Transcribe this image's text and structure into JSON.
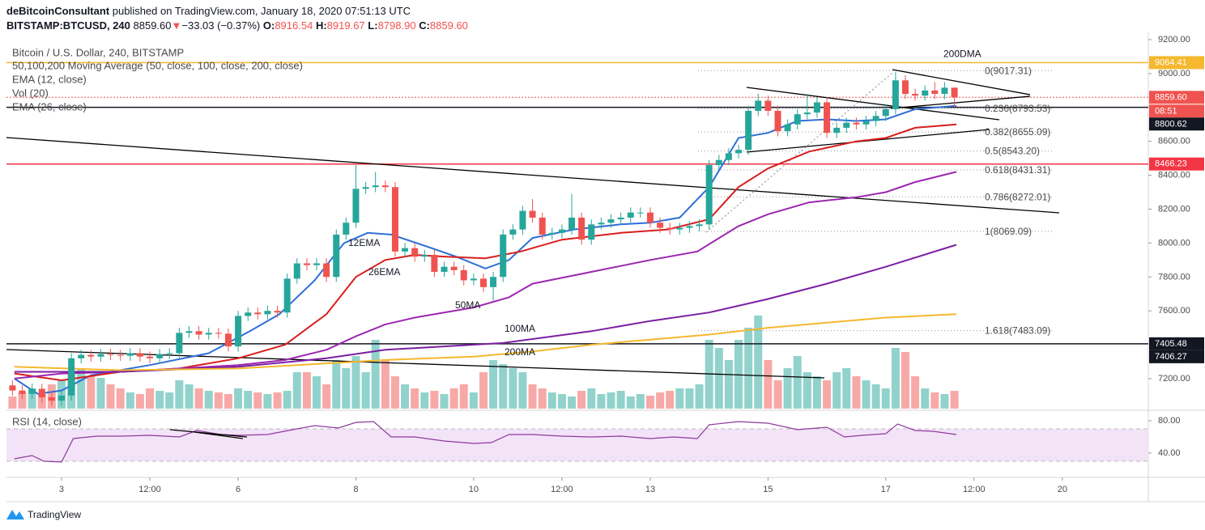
{
  "header": {
    "publisher": "deBitcoinConsultant",
    "published": "published on TradingView.com, January 18, 2020 07:51:13 UTC",
    "symbol": "BITSTAMP:BTCUSD, 240",
    "last": "8859.60",
    "arrow": "▼",
    "change": "−33.03 (−0.37%)",
    "ohlc": [
      {
        "key": "O:",
        "value": "8916.54"
      },
      {
        "key": "H:",
        "value": "8919.67"
      },
      {
        "key": "L:",
        "value": "8798.90"
      },
      {
        "key": "C:",
        "value": "8859.60"
      }
    ]
  },
  "legend": [
    "Bitcoin / U.S. Dollar, 240, BITSTAMP",
    "50,100,200 Moving Average (50, close, 100, close, 200, close)",
    "EMA (12, close)",
    "Vol (20)",
    "EMA (26, close)"
  ],
  "chart_data": {
    "type": "candlestick",
    "up_color": "#26a69a",
    "down_color": "#ef5350",
    "xlim": [
      2.065,
      21.46
    ],
    "ylim": [
      7023,
      9243
    ],
    "xticks": [
      {
        "value": 3,
        "label": "3"
      },
      {
        "value": 4.5,
        "label": "12:00"
      },
      {
        "value": 6,
        "label": "6"
      },
      {
        "value": 8,
        "label": "8"
      },
      {
        "value": 10,
        "label": "10"
      },
      {
        "value": 11.5,
        "label": "12:00"
      },
      {
        "value": 13,
        "label": "13"
      },
      {
        "value": 15,
        "label": "15"
      },
      {
        "value": 17,
        "label": "17"
      },
      {
        "value": 18.5,
        "label": "12:00"
      },
      {
        "value": 20,
        "label": "20"
      }
    ],
    "yticks": [
      {
        "value": 9200,
        "label": "9200.00"
      },
      {
        "value": 9000,
        "label": "9000.00"
      },
      {
        "value": 8600,
        "label": "8600.00"
      },
      {
        "value": 8400,
        "label": "8400.00"
      },
      {
        "value": 8200,
        "label": "8200.00"
      },
      {
        "value": 8000,
        "label": "8000.00"
      },
      {
        "value": 7800,
        "label": "7800.00"
      },
      {
        "value": 7600,
        "label": "7600.00"
      },
      {
        "value": 7200,
        "label": "7200.00"
      }
    ],
    "x": [
      2.167,
      2.333,
      2.5,
      2.667,
      2.833,
      3,
      3.167,
      3.333,
      3.5,
      3.667,
      3.833,
      4,
      4.167,
      4.333,
      4.5,
      4.667,
      4.833,
      5,
      5.167,
      5.333,
      5.5,
      5.667,
      5.833,
      6,
      6.167,
      6.333,
      6.5,
      6.667,
      6.833,
      7,
      7.167,
      7.333,
      7.5,
      7.667,
      7.833,
      8,
      8.167,
      8.333,
      8.5,
      8.667,
      8.833,
      9,
      9.167,
      9.333,
      9.5,
      9.667,
      9.833,
      10,
      10.167,
      10.333,
      10.5,
      10.667,
      10.833,
      11,
      11.167,
      11.333,
      11.5,
      11.667,
      11.833,
      12,
      12.167,
      12.333,
      12.5,
      12.667,
      12.833,
      13,
      13.167,
      13.333,
      13.5,
      13.667,
      13.833,
      14,
      14.167,
      14.333,
      14.5,
      14.667,
      14.833,
      15,
      15.167,
      15.333,
      15.5,
      15.667,
      15.833,
      16,
      16.167,
      16.333,
      16.5,
      16.667,
      16.833,
      17,
      17.167,
      17.333,
      17.5,
      17.667,
      17.833,
      18,
      18.167
    ],
    "open": [
      7160,
      7130,
      7110,
      7140,
      7090,
      7070,
      7100,
      7320,
      7340,
      7330,
      7345,
      7340,
      7335,
      7350,
      7330,
      7320,
      7345,
      7350,
      7470,
      7480,
      7460,
      7470,
      7465,
      7390,
      7570,
      7590,
      7580,
      7600,
      7590,
      7790,
      7880,
      7870,
      7880,
      7800,
      8050,
      8120,
      8320,
      8330,
      8340,
      8330,
      7950,
      7970,
      7920,
      7930,
      7830,
      7860,
      7840,
      7780,
      7790,
      7740,
      7800,
      8050,
      8080,
      8190,
      8150,
      8050,
      8060,
      8080,
      8150,
      8020,
      8110,
      8120,
      8140,
      8150,
      8180,
      8180,
      8120,
      8090,
      8080,
      8090,
      8100,
      8110,
      8460,
      8490,
      8530,
      8550,
      8780,
      8840,
      8780,
      8660,
      8700,
      8760,
      8770,
      8830,
      8650,
      8680,
      8710,
      8700,
      8720,
      8750,
      8790,
      8960,
      8880,
      8870,
      8900,
      8880,
      8916.54
    ],
    "high": [
      7190,
      7160,
      7170,
      7170,
      7120,
      7130,
      7350,
      7370,
      7370,
      7375,
      7375,
      7370,
      7380,
      7380,
      7360,
      7375,
      7380,
      7500,
      7510,
      7510,
      7500,
      7500,
      7495,
      7600,
      7620,
      7620,
      7630,
      7630,
      7820,
      7910,
      7910,
      7910,
      7910,
      8080,
      8150,
      8460,
      8360,
      8420,
      8370,
      8360,
      8000,
      8000,
      7960,
      7960,
      7890,
      7890,
      7870,
      7820,
      7820,
      7830,
      8080,
      8110,
      8220,
      8260,
      8180,
      8090,
      8110,
      8290,
      8180,
      8140,
      8150,
      8170,
      8180,
      8210,
      8210,
      8210,
      8150,
      8120,
      8120,
      8130,
      8140,
      8490,
      8520,
      8560,
      8580,
      8810,
      8880,
      8870,
      8810,
      8730,
      8790,
      8880,
      8860,
      8860,
      8710,
      8740,
      8740,
      8750,
      8780,
      8820,
      9010,
      8990,
      8910,
      8930,
      8950,
      8950,
      8919.67
    ],
    "low": [
      7100,
      7080,
      7080,
      7060,
      7040,
      7040,
      7070,
      7290,
      7300,
      7300,
      7310,
      7305,
      7305,
      7300,
      7290,
      7290,
      7315,
      7320,
      7440,
      7430,
      7430,
      7435,
      7360,
      7360,
      7540,
      7550,
      7550,
      7560,
      7560,
      7760,
      7840,
      7840,
      7770,
      7770,
      8020,
      8090,
      8290,
      8300,
      8300,
      7920,
      7920,
      7890,
      7890,
      7800,
      7800,
      7810,
      7750,
      7750,
      7710,
      7660,
      7770,
      8020,
      8050,
      8120,
      8020,
      8020,
      8030,
      8050,
      7990,
      7990,
      8080,
      8090,
      8110,
      8120,
      8150,
      8090,
      8060,
      8050,
      8050,
      8060,
      8070,
      8080,
      8430,
      8460,
      8500,
      8520,
      8750,
      8750,
      8630,
      8630,
      8670,
      8730,
      8740,
      8620,
      8620,
      8650,
      8670,
      8670,
      8690,
      8720,
      8760,
      8850,
      8840,
      8840,
      8850,
      8850,
      8798.9
    ],
    "close": [
      7130,
      7110,
      7140,
      7090,
      7070,
      7100,
      7320,
      7340,
      7330,
      7345,
      7340,
      7335,
      7350,
      7330,
      7320,
      7345,
      7350,
      7470,
      7480,
      7460,
      7470,
      7465,
      7390,
      7570,
      7590,
      7580,
      7600,
      7590,
      7790,
      7880,
      7870,
      7880,
      7800,
      8050,
      8120,
      8320,
      8330,
      8340,
      8330,
      7950,
      7970,
      7920,
      7930,
      7830,
      7860,
      7840,
      7780,
      7790,
      7740,
      7800,
      8050,
      8080,
      8190,
      8150,
      8050,
      8060,
      8080,
      8150,
      8020,
      8110,
      8120,
      8140,
      8150,
      8180,
      8180,
      8120,
      8090,
      8080,
      8090,
      8100,
      8110,
      8460,
      8490,
      8530,
      8550,
      8780,
      8840,
      8780,
      8660,
      8700,
      8760,
      8770,
      8830,
      8650,
      8680,
      8710,
      8700,
      8720,
      8750,
      8790,
      8960,
      8880,
      8870,
      8900,
      8880,
      8916.54,
      8859.6
    ],
    "volume": [
      15,
      20,
      25,
      18,
      30,
      35,
      45,
      50,
      40,
      38,
      30,
      25,
      20,
      18,
      25,
      22,
      20,
      35,
      30,
      25,
      22,
      20,
      18,
      25,
      22,
      20,
      18,
      20,
      22,
      45,
      45,
      40,
      30,
      60,
      50,
      65,
      45,
      85,
      60,
      40,
      30,
      25,
      20,
      22,
      18,
      25,
      30,
      20,
      45,
      60,
      55,
      50,
      45,
      30,
      25,
      20,
      18,
      15,
      22,
      25,
      18,
      20,
      22,
      15,
      18,
      16,
      20,
      22,
      25,
      25,
      30,
      85,
      75,
      60,
      85,
      100,
      115,
      60,
      35,
      50,
      65,
      45,
      40,
      35,
      45,
      50,
      40,
      35,
      30,
      25,
      75,
      70,
      40,
      25,
      20,
      18,
      22
    ],
    "lines": [
      {
        "name": "12EMA",
        "color": "#2f6fd6",
        "x": [
          2.2,
          2.6,
          3,
          3.5,
          4.5,
          5.5,
          6.2,
          6.7,
          7.3,
          7.8,
          8.2,
          8.6,
          9.2,
          9.7,
          10.2,
          10.6,
          11,
          11.7,
          12.5,
          13,
          13.5,
          14,
          14.5,
          15,
          15.5,
          16,
          16.5,
          17,
          17.5,
          18.2
        ],
        "values": [
          7200,
          7110,
          7130,
          7220,
          7280,
          7350,
          7480,
          7580,
          7780,
          8000,
          8060,
          8050,
          7980,
          7920,
          7850,
          7900,
          8030,
          8080,
          8110,
          8120,
          8150,
          8330,
          8620,
          8650,
          8720,
          8730,
          8720,
          8730,
          8790,
          8810
        ]
      },
      {
        "name": "26EMA",
        "color": "#d81e1e",
        "x": [
          2.2,
          3,
          4,
          5,
          6,
          6.8,
          7.5,
          8,
          8.5,
          9,
          9.5,
          10.2,
          10.8,
          11.5,
          12.5,
          13.3,
          14,
          14.5,
          15,
          15.7,
          16.5,
          17,
          17.5,
          18.2
        ],
        "values": [
          7230,
          7190,
          7240,
          7260,
          7320,
          7400,
          7580,
          7800,
          7900,
          7930,
          7920,
          7910,
          7950,
          8020,
          8060,
          8080,
          8140,
          8330,
          8440,
          8540,
          8600,
          8620,
          8680,
          8700
        ]
      },
      {
        "name": "50MA",
        "color": "#9c27b0",
        "x": [
          2.2,
          3,
          4,
          5,
          6,
          6.8,
          7.5,
          8,
          8.5,
          9,
          10,
          10.6,
          11,
          12,
          13,
          13.8,
          14.5,
          15,
          15.7,
          16.5,
          17,
          17.5,
          18.2
        ],
        "values": [
          7200,
          7230,
          7240,
          7260,
          7280,
          7310,
          7370,
          7450,
          7520,
          7560,
          7620,
          7680,
          7760,
          7830,
          7900,
          7950,
          8100,
          8170,
          8240,
          8270,
          8300,
          8360,
          8420
        ]
      },
      {
        "name": "100MA",
        "color": "#7b1fa2",
        "x": [
          2.2,
          4,
          6,
          7.5,
          8.5,
          9.5,
          10.5,
          12,
          13,
          14,
          15,
          16,
          17,
          18.2
        ],
        "values": [
          7240,
          7240,
          7270,
          7320,
          7370,
          7390,
          7410,
          7480,
          7540,
          7590,
          7670,
          7760,
          7860,
          7990
        ]
      },
      {
        "name": "200MA",
        "color": "#f5b82e",
        "x": [
          2.2,
          4,
          6,
          7.5,
          8.5,
          10,
          11,
          12,
          13,
          14,
          15,
          16,
          17,
          18.2
        ],
        "values": [
          7270,
          7250,
          7260,
          7290,
          7310,
          7330,
          7360,
          7400,
          7430,
          7460,
          7500,
          7530,
          7560,
          7580
        ]
      }
    ],
    "levels": [
      {
        "price": 9064.41,
        "color": "#f5b82e",
        "style": "solid",
        "name": "200DMA"
      },
      {
        "price": 8859.6,
        "label": "8859.60",
        "color": "#ef5350",
        "style": "dotted",
        "countdown": "08:51"
      },
      {
        "price": 8800.62,
        "color": "#131722",
        "style": "solid"
      },
      {
        "price": 8466.23,
        "color": "#f23645",
        "style": "solid"
      },
      {
        "price": 7405.48,
        "color": "#131722",
        "style": "solid"
      },
      {
        "price": 7406.27,
        "color": "#131722",
        "style": "none"
      }
    ],
    "fib": {
      "labels": [
        "0(9017.31)",
        "0.236(8793.53)",
        "0.382(8655.09)",
        "0.5(8543.20)",
        "0.618(8431.31)",
        "0.786(8272.01)",
        "1(8069.09)",
        "1.618(7483.09)"
      ],
      "prices": [
        9017.31,
        8793.53,
        8655.09,
        8543.2,
        8431.31,
        8272.01,
        8069.09,
        7483.09
      ]
    },
    "rsi": {
      "title": "RSI (14, close)",
      "color": "#8e3a9d",
      "ylim": [
        10,
        92
      ],
      "band": [
        30,
        70
      ],
      "yticks": [
        {
          "value": 80,
          "label": "80.00"
        },
        {
          "value": 40,
          "label": "40.00"
        }
      ],
      "x": [
        2.2,
        2.5,
        2.7,
        3,
        3.2,
        3.6,
        4,
        4.5,
        5,
        5.3,
        5.7,
        6,
        6.5,
        7,
        7.3,
        7.7,
        8,
        8.3,
        8.6,
        9,
        9.5,
        10,
        10.3,
        10.6,
        11,
        11.5,
        12,
        12.5,
        13,
        13.4,
        13.8,
        14,
        14.5,
        15,
        15.5,
        16,
        16.3,
        16.6,
        17,
        17.2,
        17.5,
        17.8,
        18.2
      ],
      "values": [
        33,
        37,
        30,
        29,
        58,
        61,
        61,
        62,
        60,
        68,
        63,
        62,
        63,
        70,
        74,
        71,
        78,
        79,
        60,
        60,
        55,
        52,
        53,
        63,
        63,
        61,
        60,
        61,
        58,
        60,
        58,
        75,
        79,
        77,
        69,
        72,
        60,
        62,
        64,
        76,
        68,
        67,
        63
      ]
    }
  },
  "footer": {
    "logo": "TradingView"
  }
}
